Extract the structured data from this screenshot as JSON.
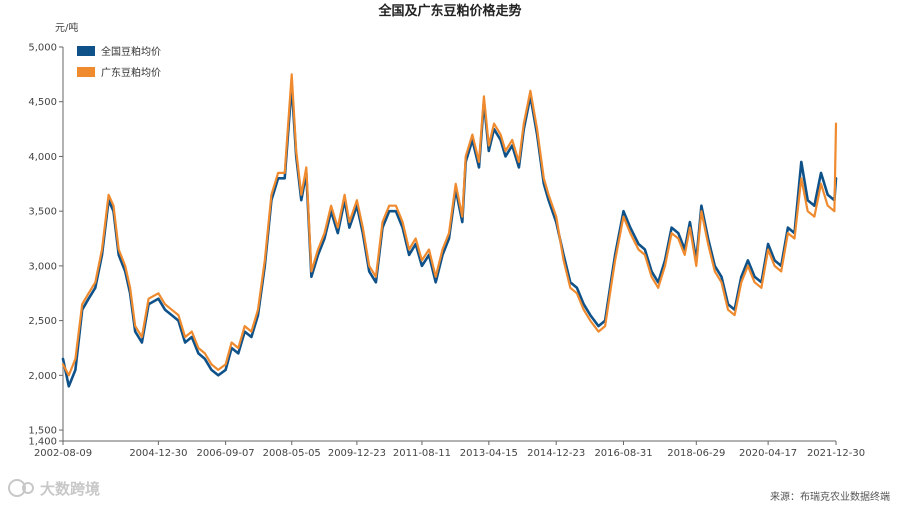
{
  "chart_data": {
    "type": "line",
    "title": "全国及广东豆粕价格走势",
    "ylabel": "元/吨",
    "ylim": [
      1400,
      5000
    ],
    "yticks": [
      1400,
      1500,
      2000,
      2500,
      3000,
      3500,
      4000,
      4500,
      5000
    ],
    "ytick_labels": [
      "1,400",
      "1,500",
      "2,000",
      "2,500",
      "3,000",
      "3,500",
      "4,000",
      "4,500",
      "5,000"
    ],
    "xticks": [
      "2002-08-09",
      "2004-12-30",
      "2006-09-07",
      "2008-05-05",
      "2009-12-23",
      "2011-08-11",
      "2013-04-15",
      "2014-12-23",
      "2016-08-31",
      "2018-06-29",
      "2020-04-17",
      "2021-12-30"
    ],
    "grid": false,
    "legend_position": "top-left",
    "x": [
      "2002-08-09",
      "2002-10-01",
      "2002-12-01",
      "2003-02-01",
      "2003-04-01",
      "2003-06-01",
      "2003-08-01",
      "2003-10-01",
      "2003-11-15",
      "2004-01-01",
      "2004-03-01",
      "2004-04-15",
      "2004-06-01",
      "2004-08-01",
      "2004-10-01",
      "2004-12-30",
      "2005-03-01",
      "2005-05-01",
      "2005-07-01",
      "2005-09-01",
      "2005-11-01",
      "2006-01-01",
      "2006-03-01",
      "2006-05-01",
      "2006-07-01",
      "2006-09-07",
      "2006-11-01",
      "2007-01-01",
      "2007-03-01",
      "2007-05-01",
      "2007-07-01",
      "2007-09-01",
      "2007-11-01",
      "2008-01-01",
      "2008-03-01",
      "2008-05-05",
      "2008-06-15",
      "2008-08-01",
      "2008-09-15",
      "2008-11-01",
      "2009-01-01",
      "2009-03-01",
      "2009-05-01",
      "2009-07-01",
      "2009-09-01",
      "2009-10-15",
      "2009-12-23",
      "2010-02-15",
      "2010-04-15",
      "2010-06-15",
      "2010-08-15",
      "2010-10-15",
      "2010-12-15",
      "2011-02-15",
      "2011-04-15",
      "2011-06-15",
      "2011-08-11",
      "2011-10-15",
      "2011-12-15",
      "2012-02-15",
      "2012-04-15",
      "2012-06-15",
      "2012-08-15",
      "2012-09-15",
      "2012-11-15",
      "2013-01-15",
      "2013-03-01",
      "2013-04-15",
      "2013-06-01",
      "2013-08-01",
      "2013-09-15",
      "2013-11-15",
      "2014-01-15",
      "2014-03-01",
      "2014-05-01",
      "2014-07-01",
      "2014-09-01",
      "2014-10-15",
      "2014-12-23",
      "2015-03-01",
      "2015-05-01",
      "2015-07-01",
      "2015-09-01",
      "2015-11-01",
      "2016-01-15",
      "2016-03-15",
      "2016-05-15",
      "2016-06-15",
      "2016-08-31",
      "2016-11-01",
      "2017-01-15",
      "2017-03-15",
      "2017-05-15",
      "2017-07-15",
      "2017-09-15",
      "2017-11-15",
      "2018-01-15",
      "2018-03-15",
      "2018-05-01",
      "2018-06-29",
      "2018-08-15",
      "2018-10-15",
      "2018-12-15",
      "2019-02-15",
      "2019-04-15",
      "2019-06-15",
      "2019-08-15",
      "2019-10-15",
      "2019-12-15",
      "2020-02-15",
      "2020-04-17",
      "2020-06-15",
      "2020-08-15",
      "2020-10-15",
      "2020-12-15",
      "2021-02-15",
      "2021-04-15",
      "2021-06-15",
      "2021-08-15",
      "2021-10-15",
      "2021-12-15",
      "2021-12-30"
    ],
    "series": [
      {
        "name": "全国豆粕均价",
        "color": "#0f5289",
        "values": [
          2150,
          1900,
          2050,
          2600,
          2700,
          2800,
          3100,
          3600,
          3500,
          3100,
          2950,
          2750,
          2400,
          2300,
          2650,
          2700,
          2600,
          2550,
          2500,
          2300,
          2350,
          2200,
          2150,
          2050,
          2000,
          2050,
          2250,
          2200,
          2400,
          2350,
          2550,
          3000,
          3600,
          3800,
          3800,
          4650,
          4000,
          3600,
          3850,
          2900,
          3100,
          3250,
          3500,
          3300,
          3600,
          3350,
          3550,
          3300,
          2950,
          2850,
          3350,
          3500,
          3500,
          3350,
          3100,
          3200,
          3000,
          3100,
          2850,
          3100,
          3250,
          3700,
          3400,
          3950,
          4150,
          3900,
          4500,
          4050,
          4250,
          4150,
          4000,
          4100,
          3900,
          4250,
          4550,
          4200,
          3750,
          3600,
          3400,
          3100,
          2850,
          2800,
          2650,
          2550,
          2450,
          2500,
          2900,
          3100,
          3500,
          3350,
          3200,
          3150,
          2950,
          2850,
          3050,
          3350,
          3300,
          3150,
          3400,
          3050,
          3550,
          3250,
          3000,
          2900,
          2650,
          2600,
          2900,
          3050,
          2900,
          2850,
          3200,
          3050,
          3000,
          3350,
          3300,
          3950,
          3600,
          3550,
          3850,
          3650,
          3600,
          3800
        ]
      },
      {
        "name": "广东豆粕均价",
        "color": "#ef8a2e",
        "values": [
          2100,
          2000,
          2150,
          2650,
          2750,
          2850,
          3150,
          3650,
          3550,
          3150,
          3000,
          2800,
          2450,
          2350,
          2700,
          2750,
          2650,
          2600,
          2550,
          2350,
          2400,
          2250,
          2200,
          2100,
          2050,
          2100,
          2300,
          2250,
          2450,
          2400,
          2600,
          3050,
          3650,
          3850,
          3850,
          4750,
          4050,
          3650,
          3900,
          2950,
          3150,
          3300,
          3550,
          3350,
          3650,
          3400,
          3600,
          3350,
          3000,
          2900,
          3400,
          3550,
          3550,
          3400,
          3150,
          3250,
          3050,
          3150,
          2900,
          3150,
          3300,
          3750,
          3450,
          4000,
          4200,
          3950,
          4550,
          4100,
          4300,
          4200,
          4050,
          4150,
          3950,
          4300,
          4600,
          4250,
          3800,
          3650,
          3450,
          3050,
          2800,
          2750,
          2600,
          2500,
          2400,
          2450,
          2850,
          3050,
          3450,
          3300,
          3150,
          3100,
          2900,
          2800,
          3000,
          3300,
          3250,
          3100,
          3350,
          3000,
          3500,
          3200,
          2950,
          2850,
          2600,
          2550,
          2850,
          3000,
          2850,
          2800,
          3150,
          3000,
          2950,
          3300,
          3250,
          3800,
          3500,
          3450,
          3750,
          3550,
          3500,
          4300
        ]
      }
    ]
  },
  "footer": {
    "logo_text": "大数跨境",
    "source": "来源：布瑞克农业数据终端"
  }
}
